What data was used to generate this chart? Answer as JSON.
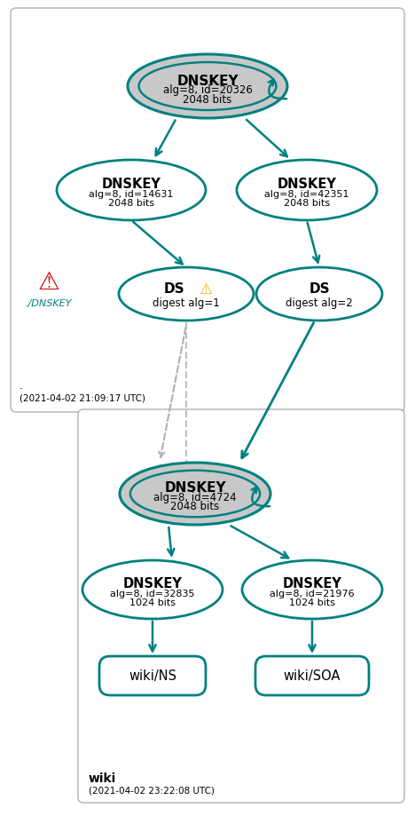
{
  "teal": "#008080",
  "gray_fill": "#c8c8c8",
  "white_fill": "#ffffff",
  "bg": "#ffffff",
  "box1_dot": ".",
  "box1_timestamp": "(2021-04-02 21:09:17 UTC)",
  "box2_label": "wiki",
  "box2_timestamp": "(2021-04-02 23:22:08 UTC)",
  "node_top_label": "DNSKEY",
  "node_top_sub": "alg=8, id=20326\n2048 bits",
  "node_left_label": "DNSKEY",
  "node_left_sub": "alg=8, id=14631\n2048 bits",
  "node_right_label": "DNSKEY",
  "node_right_sub": "alg=8, id=42351\n2048 bits",
  "ds_left_label": "DS",
  "ds_left_sub": "digest alg=1",
  "ds_right_label": "DS",
  "ds_right_sub": "digest alg=2",
  "side_icon": "⚠",
  "side_label": "./DNSKEY",
  "node_b_top_label": "DNSKEY",
  "node_b_top_sub": "alg=8, id=4724\n2048 bits",
  "node_b_left_label": "DNSKEY",
  "node_b_left_sub": "alg=8, id=32835\n1024 bits",
  "node_b_right_label": "DNSKEY",
  "node_b_right_sub": "alg=8, id=21976\n1024 bits",
  "rect_left_label": "wiki/NS",
  "rect_right_label": "wiki/SOA",
  "warn_icon": "⚠"
}
